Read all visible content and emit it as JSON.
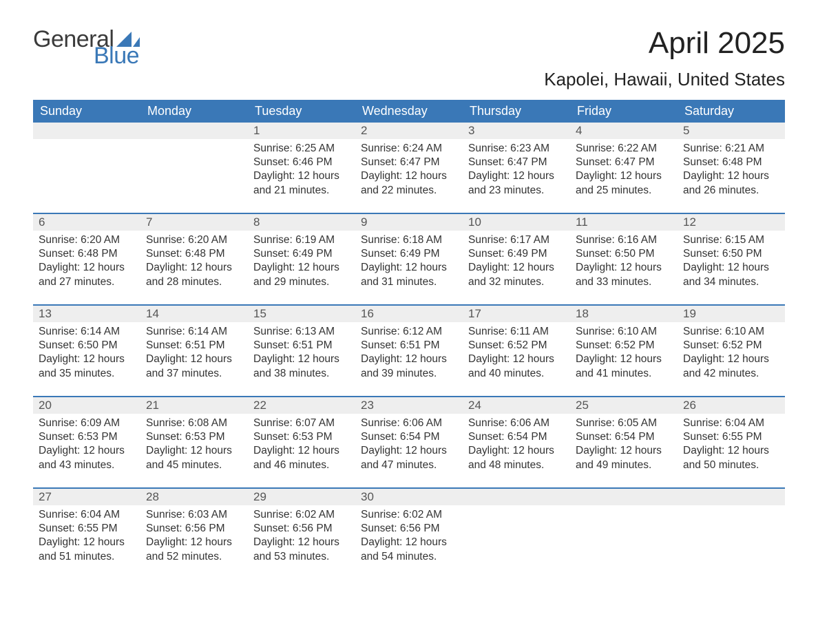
{
  "brand": {
    "part1": "General",
    "part2": "Blue",
    "sail_color": "#3a78b7",
    "text_dark": "#3b3b3b"
  },
  "title": "April 2025",
  "location": "Kapolei, Hawaii, United States",
  "theme": {
    "header_bg": "#3a78b7",
    "header_text": "#ffffff",
    "daynum_bg": "#eeeeee",
    "row_border": "#3a78b7",
    "body_text": "#333333",
    "page_bg": "#ffffff",
    "title_fontsize": 44,
    "location_fontsize": 26,
    "dayheader_fontsize": 18,
    "cell_fontsize": 15.5
  },
  "day_headers": [
    "Sunday",
    "Monday",
    "Tuesday",
    "Wednesday",
    "Thursday",
    "Friday",
    "Saturday"
  ],
  "labels": {
    "sunrise": "Sunrise:",
    "sunset": "Sunset:",
    "daylight": "Daylight:"
  },
  "weeks": [
    [
      null,
      null,
      {
        "n": "1",
        "sunrise": "6:25 AM",
        "sunset": "6:46 PM",
        "daylight": "12 hours and 21 minutes."
      },
      {
        "n": "2",
        "sunrise": "6:24 AM",
        "sunset": "6:47 PM",
        "daylight": "12 hours and 22 minutes."
      },
      {
        "n": "3",
        "sunrise": "6:23 AM",
        "sunset": "6:47 PM",
        "daylight": "12 hours and 23 minutes."
      },
      {
        "n": "4",
        "sunrise": "6:22 AM",
        "sunset": "6:47 PM",
        "daylight": "12 hours and 25 minutes."
      },
      {
        "n": "5",
        "sunrise": "6:21 AM",
        "sunset": "6:48 PM",
        "daylight": "12 hours and 26 minutes."
      }
    ],
    [
      {
        "n": "6",
        "sunrise": "6:20 AM",
        "sunset": "6:48 PM",
        "daylight": "12 hours and 27 minutes."
      },
      {
        "n": "7",
        "sunrise": "6:20 AM",
        "sunset": "6:48 PM",
        "daylight": "12 hours and 28 minutes."
      },
      {
        "n": "8",
        "sunrise": "6:19 AM",
        "sunset": "6:49 PM",
        "daylight": "12 hours and 29 minutes."
      },
      {
        "n": "9",
        "sunrise": "6:18 AM",
        "sunset": "6:49 PM",
        "daylight": "12 hours and 31 minutes."
      },
      {
        "n": "10",
        "sunrise": "6:17 AM",
        "sunset": "6:49 PM",
        "daylight": "12 hours and 32 minutes."
      },
      {
        "n": "11",
        "sunrise": "6:16 AM",
        "sunset": "6:50 PM",
        "daylight": "12 hours and 33 minutes."
      },
      {
        "n": "12",
        "sunrise": "6:15 AM",
        "sunset": "6:50 PM",
        "daylight": "12 hours and 34 minutes."
      }
    ],
    [
      {
        "n": "13",
        "sunrise": "6:14 AM",
        "sunset": "6:50 PM",
        "daylight": "12 hours and 35 minutes."
      },
      {
        "n": "14",
        "sunrise": "6:14 AM",
        "sunset": "6:51 PM",
        "daylight": "12 hours and 37 minutes."
      },
      {
        "n": "15",
        "sunrise": "6:13 AM",
        "sunset": "6:51 PM",
        "daylight": "12 hours and 38 minutes."
      },
      {
        "n": "16",
        "sunrise": "6:12 AM",
        "sunset": "6:51 PM",
        "daylight": "12 hours and 39 minutes."
      },
      {
        "n": "17",
        "sunrise": "6:11 AM",
        "sunset": "6:52 PM",
        "daylight": "12 hours and 40 minutes."
      },
      {
        "n": "18",
        "sunrise": "6:10 AM",
        "sunset": "6:52 PM",
        "daylight": "12 hours and 41 minutes."
      },
      {
        "n": "19",
        "sunrise": "6:10 AM",
        "sunset": "6:52 PM",
        "daylight": "12 hours and 42 minutes."
      }
    ],
    [
      {
        "n": "20",
        "sunrise": "6:09 AM",
        "sunset": "6:53 PM",
        "daylight": "12 hours and 43 minutes."
      },
      {
        "n": "21",
        "sunrise": "6:08 AM",
        "sunset": "6:53 PM",
        "daylight": "12 hours and 45 minutes."
      },
      {
        "n": "22",
        "sunrise": "6:07 AM",
        "sunset": "6:53 PM",
        "daylight": "12 hours and 46 minutes."
      },
      {
        "n": "23",
        "sunrise": "6:06 AM",
        "sunset": "6:54 PM",
        "daylight": "12 hours and 47 minutes."
      },
      {
        "n": "24",
        "sunrise": "6:06 AM",
        "sunset": "6:54 PM",
        "daylight": "12 hours and 48 minutes."
      },
      {
        "n": "25",
        "sunrise": "6:05 AM",
        "sunset": "6:54 PM",
        "daylight": "12 hours and 49 minutes."
      },
      {
        "n": "26",
        "sunrise": "6:04 AM",
        "sunset": "6:55 PM",
        "daylight": "12 hours and 50 minutes."
      }
    ],
    [
      {
        "n": "27",
        "sunrise": "6:04 AM",
        "sunset": "6:55 PM",
        "daylight": "12 hours and 51 minutes."
      },
      {
        "n": "28",
        "sunrise": "6:03 AM",
        "sunset": "6:56 PM",
        "daylight": "12 hours and 52 minutes."
      },
      {
        "n": "29",
        "sunrise": "6:02 AM",
        "sunset": "6:56 PM",
        "daylight": "12 hours and 53 minutes."
      },
      {
        "n": "30",
        "sunrise": "6:02 AM",
        "sunset": "6:56 PM",
        "daylight": "12 hours and 54 minutes."
      },
      null,
      null,
      null
    ]
  ]
}
